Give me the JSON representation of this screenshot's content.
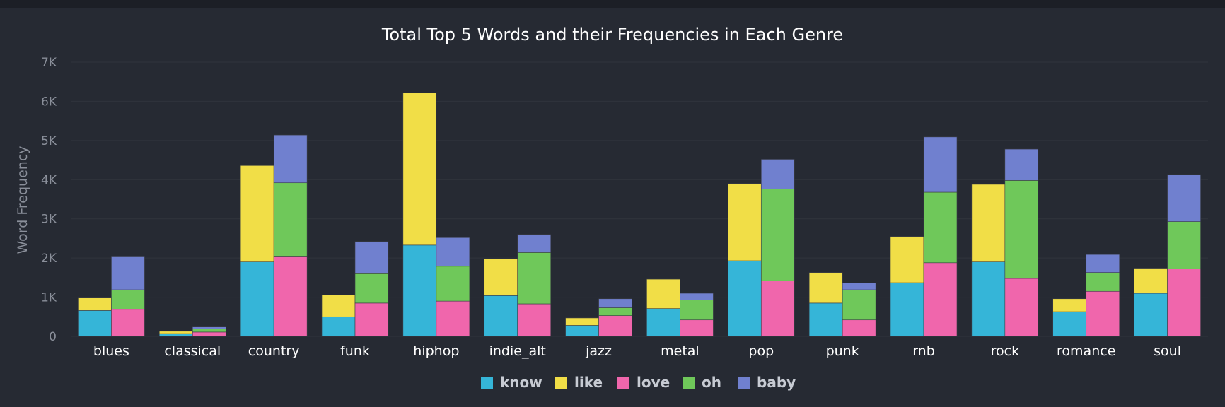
{
  "colors": {
    "background": "#262a33",
    "grid": "#30343d",
    "title_text": "#ffffff",
    "tick_text": "#ffffff",
    "y_tick_text": "#8a8f9a",
    "axis_label_text": "#8a8f9a",
    "legend_text": "#c7cbd3",
    "bar_stroke": "#3a3d45"
  },
  "chart_data": {
    "type": "bar",
    "stacked": true,
    "grouped": true,
    "title": "Total Top 5 Words and their Frequencies in Each Genre",
    "xlabel": "",
    "ylabel": "Word Frequency",
    "ylim": [
      0,
      7000
    ],
    "yticks": [
      {
        "value": 0,
        "label": "0"
      },
      {
        "value": 1000,
        "label": "1K"
      },
      {
        "value": 2000,
        "label": "2K"
      },
      {
        "value": 3000,
        "label": "3K"
      },
      {
        "value": 4000,
        "label": "4K"
      },
      {
        "value": 5000,
        "label": "5K"
      },
      {
        "value": 6000,
        "label": "6K"
      },
      {
        "value": 7000,
        "label": "7K"
      }
    ],
    "grid": true,
    "legend_position": "bottom",
    "categories": [
      "blues",
      "classical",
      "country",
      "funk",
      "hiphop",
      "indie_alt",
      "jazz",
      "metal",
      "pop",
      "punk",
      "rnb",
      "rock",
      "romance",
      "soul"
    ],
    "stacks": [
      {
        "name": "left",
        "series": [
          {
            "name": "know",
            "color": "#35b5d8",
            "values": [
              660,
              70,
              1900,
              500,
              2330,
              1040,
              280,
              710,
              1930,
              850,
              1370,
              1900,
              630,
              1100
            ]
          },
          {
            "name": "like",
            "color": "#f1de47",
            "values": [
              320,
              60,
              2460,
              560,
              3890,
              940,
              190,
              750,
              1970,
              780,
              1180,
              1980,
              330,
              640
            ]
          }
        ]
      },
      {
        "name": "right",
        "series": [
          {
            "name": "love",
            "color": "#f066ac",
            "values": [
              690,
              110,
              2030,
              850,
              900,
              830,
              530,
              420,
              1420,
              420,
              1880,
              1480,
              1150,
              1720
            ]
          },
          {
            "name": "oh",
            "color": "#6fc85a",
            "values": [
              500,
              80,
              1890,
              750,
              890,
              1310,
              200,
              510,
              2340,
              770,
              1800,
              2500,
              480,
              1210
            ]
          },
          {
            "name": "baby",
            "color": "#7080cf",
            "values": [
              840,
              50,
              1220,
              820,
              730,
              460,
              230,
              170,
              760,
              170,
              1410,
              800,
              460,
              1200
            ]
          }
        ]
      }
    ],
    "legend": [
      {
        "name": "know",
        "color": "#35b5d8"
      },
      {
        "name": "like",
        "color": "#f1de47"
      },
      {
        "name": "love",
        "color": "#f066ac"
      },
      {
        "name": "oh",
        "color": "#6fc85a"
      },
      {
        "name": "baby",
        "color": "#7080cf"
      }
    ]
  }
}
